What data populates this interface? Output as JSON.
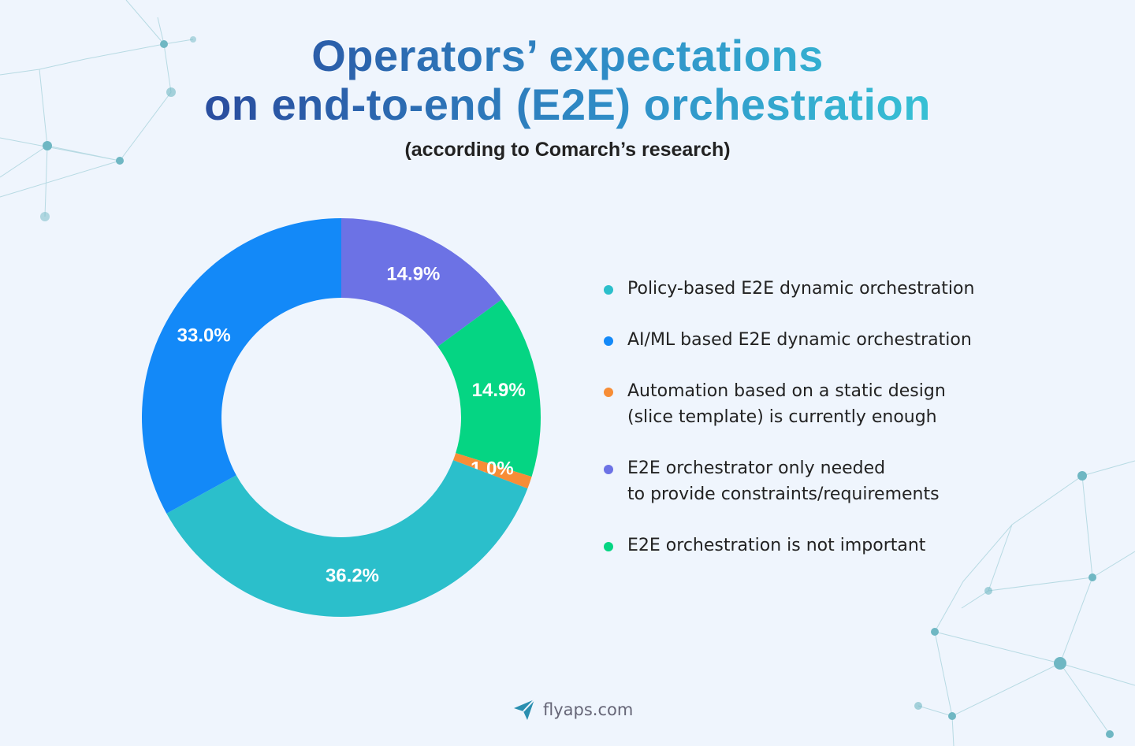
{
  "chart_data": {
    "type": "donut",
    "title": "Operators’ expectations\non end-to-end (E2E) orchestration",
    "subtitle": "(according to Comarch’s research)",
    "categories": [
      "Policy-based E2E dynamic orchestration",
      "AI/ML based E2E dynamic orchestration",
      "Automation based on a static design\n(slice template) is currently enough",
      "E2E orchestrator only needed\nto provide constraints/requirements",
      "E2E orchestration is not important"
    ],
    "values": [
      36.2,
      33.0,
      1.0,
      14.9,
      14.9
    ],
    "value_labels": [
      "36.2%",
      "33.0%",
      "1.0%",
      "14.9%",
      "14.9%"
    ],
    "colors": [
      "#2bbfcb",
      "#1389f8",
      "#f78d36",
      "#6c72e5",
      "#05d583"
    ],
    "source": "flyaps.com"
  }
}
